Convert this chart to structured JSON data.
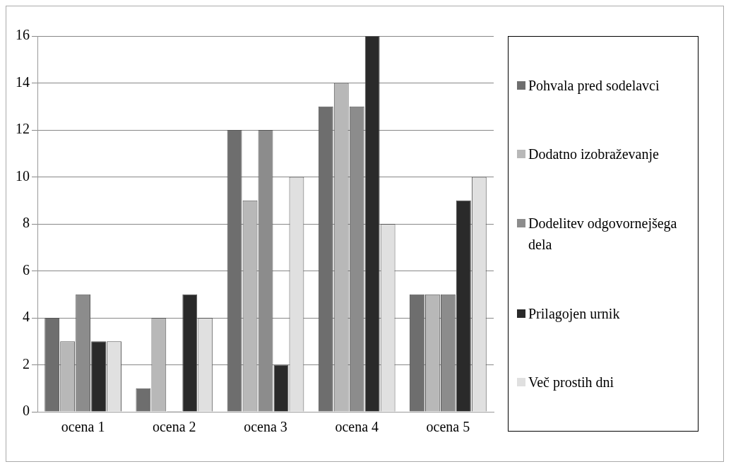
{
  "chart_data": {
    "type": "bar",
    "categories": [
      "ocena 1",
      "ocena 2",
      "ocena 3",
      "ocena 4",
      "ocena 5"
    ],
    "series": [
      {
        "name": "Pohvala pred sodelavci",
        "color": "#6e6e6e",
        "values": [
          4,
          1,
          12,
          13,
          5
        ]
      },
      {
        "name": "Dodatno izobraževanje",
        "color": "#b8b8b8",
        "values": [
          3,
          4,
          9,
          14,
          5
        ]
      },
      {
        "name": "Dodelitev odgovornejšega dela",
        "color": "#8c8c8c",
        "values": [
          5,
          0,
          12,
          13,
          5
        ]
      },
      {
        "name": "Prilagojen urnik",
        "color": "#2a2a2a",
        "values": [
          3,
          5,
          2,
          16,
          9
        ]
      },
      {
        "name": "Več prostih dni",
        "color": "#e0e0e0",
        "values": [
          3,
          4,
          10,
          8,
          10
        ]
      }
    ],
    "ylim": [
      0,
      16
    ],
    "yticks": [
      0,
      2,
      4,
      6,
      8,
      10,
      12,
      14,
      16
    ],
    "grid": "y",
    "legend": "right"
  }
}
